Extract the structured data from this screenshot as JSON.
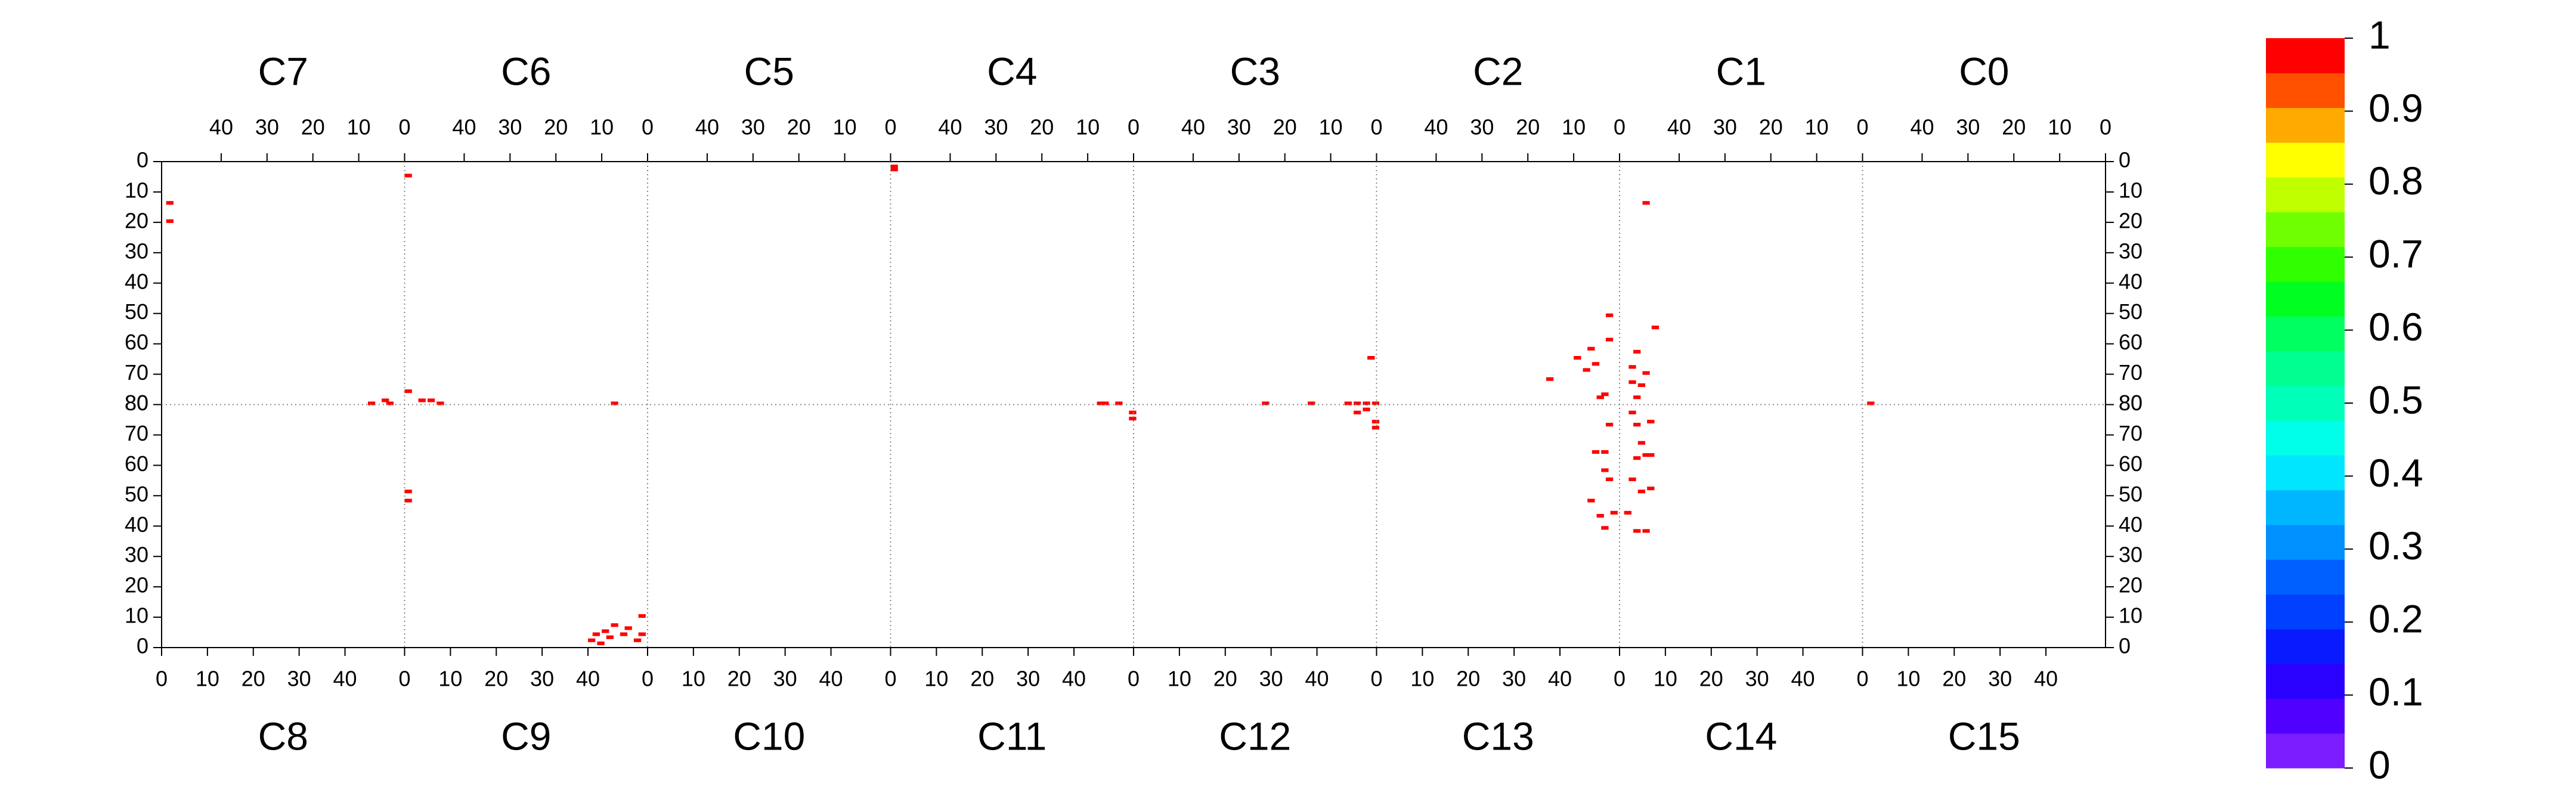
{
  "chart_data": {
    "type": "heatmap",
    "top_chips": [
      {
        "name": "C7",
        "x": [
          51,
          51,
          7,
          4,
          3
        ],
        "y": [
          13,
          19,
          79,
          78,
          79
        ],
        "values": [
          1,
          1,
          1,
          1,
          1
        ]
      },
      {
        "name": "C6",
        "x": [
          52,
          52,
          49,
          47,
          45,
          7
        ],
        "y": [
          4,
          75,
          78,
          78,
          79,
          79
        ],
        "values": [
          1,
          1,
          1,
          1,
          1,
          1
        ]
      },
      {
        "name": "C5",
        "x": [],
        "y": [],
        "values": []
      },
      {
        "name": "C4",
        "x": [
          52,
          52,
          7,
          6,
          3
        ],
        "y": [
          1,
          2,
          79,
          79,
          79
        ],
        "values": [
          1,
          1,
          1,
          1,
          1
        ]
      },
      {
        "name": "C3",
        "x": [
          24,
          14,
          6,
          4,
          2,
          0,
          1
        ],
        "y": [
          79,
          79,
          79,
          79,
          79,
          79,
          64
        ],
        "values": [
          1,
          1,
          1,
          1,
          1,
          1,
          1
        ]
      },
      {
        "name": "C2",
        "x": [
          15,
          9,
          7,
          5,
          2,
          3,
          4,
          2,
          6
        ],
        "y": [
          71,
          64,
          68,
          66,
          50,
          76,
          77,
          58,
          61
        ],
        "values": [
          1,
          1,
          1,
          1,
          1,
          1,
          1,
          1,
          1
        ]
      },
      {
        "name": "C1",
        "x": [
          47,
          45,
          49,
          50,
          49,
          47,
          48,
          50
        ],
        "y": [
          13,
          54,
          62,
          67,
          77,
          69,
          73,
          72
        ],
        "values": [
          1,
          1,
          1,
          1,
          1,
          1,
          1,
          1
        ]
      },
      {
        "name": "C0",
        "x": [
          51
        ],
        "y": [
          79
        ],
        "values": [
          1
        ]
      }
    ],
    "bottom_chips": [
      {
        "name": "C8",
        "x": [],
        "y": [],
        "values": []
      },
      {
        "name": "C9",
        "x": [
          0,
          0,
          40,
          41,
          43,
          45,
          47,
          51,
          51,
          48,
          42,
          44,
          50
        ],
        "y": [
          48,
          51,
          2,
          4,
          5,
          7,
          4,
          4,
          10,
          6,
          1,
          3,
          2
        ],
        "values": [
          1,
          1,
          1,
          1,
          1,
          1,
          1,
          1,
          1,
          1,
          1,
          1,
          1
        ]
      },
      {
        "name": "C10",
        "x": [],
        "y": [],
        "values": []
      },
      {
        "name": "C11",
        "x": [
          52,
          52
        ],
        "y": [
          77,
          75
        ],
        "values": [
          1,
          1
        ]
      },
      {
        "name": "C12",
        "x": [
          48,
          52,
          52,
          50
        ],
        "y": [
          77,
          74,
          72,
          78
        ],
        "values": [
          1,
          1,
          1,
          1
        ]
      },
      {
        "name": "C13",
        "x": [
          50,
          49,
          47,
          50,
          49,
          46,
          48,
          49,
          51
        ],
        "y": [
          73,
          64,
          64,
          55,
          58,
          48,
          43,
          39,
          44
        ],
        "values": [
          1,
          1,
          1,
          1,
          1,
          1,
          1,
          1,
          1
        ]
      },
      {
        "name": "C14",
        "x": [
          2,
          3,
          3,
          5,
          6,
          2,
          4,
          6,
          3,
          5,
          1,
          6,
          4
        ],
        "y": [
          77,
          73,
          62,
          63,
          63,
          55,
          51,
          52,
          38,
          38,
          44,
          74,
          67
        ],
        "values": [
          1,
          1,
          1,
          1,
          1,
          1,
          1,
          1,
          1,
          1,
          1,
          1,
          1
        ]
      },
      {
        "name": "C15",
        "x": [],
        "y": [],
        "values": []
      }
    ],
    "xlim": [
      0,
      53
    ],
    "ylim": [
      0,
      80
    ],
    "xticks": [
      0,
      10,
      20,
      30,
      40
    ],
    "yticks": [
      0,
      10,
      20,
      30,
      40,
      50,
      60,
      70,
      80
    ],
    "zlim": [
      0,
      1
    ],
    "zticks": [
      0,
      0.1,
      0.2,
      0.3,
      0.4,
      0.5,
      0.6,
      0.7,
      0.8,
      0.9,
      1
    ],
    "colorscale": [
      "#7b1dff",
      "#5000ff",
      "#2a00ff",
      "#0a1aff",
      "#0040ff",
      "#0060ff",
      "#0090ff",
      "#00b6ff",
      "#00e6ff",
      "#00ffe8",
      "#00ffb8",
      "#00ff90",
      "#00ff60",
      "#00ff20",
      "#30ff00",
      "#70ff00",
      "#c0ff00",
      "#ffff00",
      "#ffaa00",
      "#ff5000",
      "#ff0000"
    ]
  }
}
